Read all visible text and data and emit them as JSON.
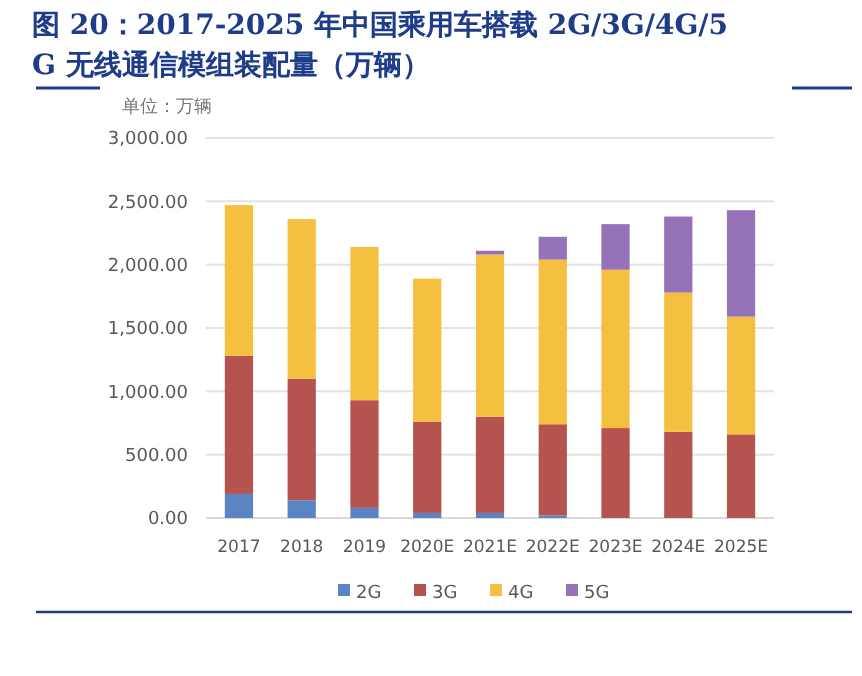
{
  "chart_data": {
    "type": "bar",
    "stacked": true,
    "title": "图 20：2017-2025 年中国乘用车搭载 2G/3G/4G/5G 无线通信模组装配量（万辆）",
    "ylabel": "单位：万辆",
    "categories": [
      "2017",
      "2018",
      "2019",
      "2020E",
      "2021E",
      "2022E",
      "2023E",
      "2024E",
      "2025E"
    ],
    "series": [
      {
        "name": "2G",
        "color": "#5b84c4",
        "values": [
          190,
          140,
          80,
          40,
          40,
          20,
          null,
          null,
          null
        ]
      },
      {
        "name": "3G",
        "color": "#b5534f",
        "values": [
          1090,
          960,
          850,
          720,
          760,
          720,
          710,
          680,
          660
        ]
      },
      {
        "name": "4G",
        "color": "#f5c040",
        "values": [
          1190,
          1260,
          1210,
          1130,
          1280,
          1300,
          1250,
          1100,
          930
        ]
      },
      {
        "name": "5G",
        "color": "#9673b8",
        "values": [
          null,
          null,
          null,
          null,
          30,
          180,
          360,
          600,
          840
        ]
      }
    ],
    "ylim": [
      0,
      3000
    ],
    "yticks": [
      {
        "value": 0,
        "label": "0.00"
      },
      {
        "value": 500,
        "label": "500.00"
      },
      {
        "value": 1000,
        "label": "1,000.00"
      },
      {
        "value": 1500,
        "label": "1,500.00"
      },
      {
        "value": 2000,
        "label": "2,000.00"
      },
      {
        "value": 2500,
        "label": "2,500.00"
      },
      {
        "value": 3000,
        "label": "3,000.00"
      }
    ],
    "grid": "y",
    "legend": "bottom"
  }
}
